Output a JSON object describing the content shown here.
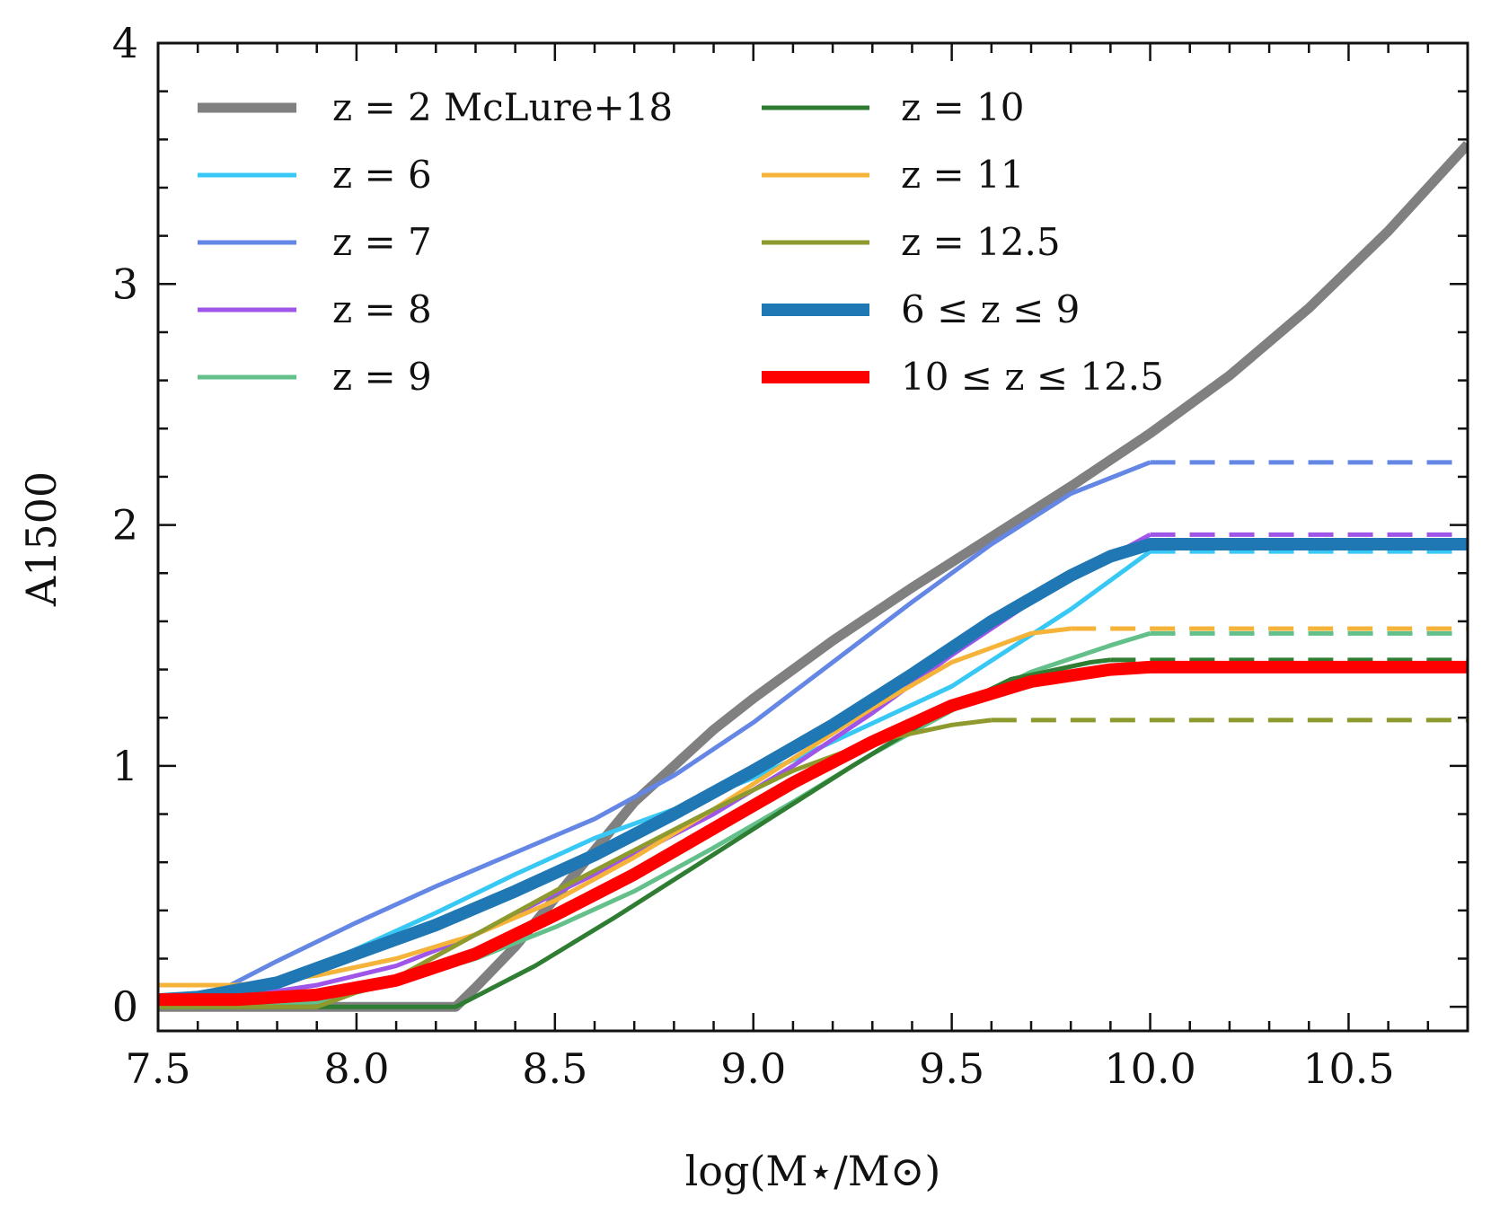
{
  "chart_data": {
    "type": "line",
    "title": "",
    "xlabel": "log(M⋆/M⊙)",
    "ylabel": "A1500",
    "xlim": [
      7.5,
      10.8
    ],
    "ylim": [
      -0.1,
      4.0
    ],
    "xticks": [
      7.5,
      8.0,
      8.5,
      9.0,
      9.5,
      10.0,
      10.5
    ],
    "xtick_labels": [
      "7.5",
      "8.0",
      "8.5",
      "9.0",
      "9.5",
      "10.0",
      "10.5"
    ],
    "yticks": [
      0,
      1,
      2,
      3,
      4
    ],
    "ytick_labels": [
      "0",
      "1",
      "2",
      "3",
      "4"
    ],
    "legend_position": "upper-left",
    "series": [
      {
        "name": "z = 2 McLure+18",
        "color": "#808080",
        "width": 11,
        "x": [
          7.5,
          8.25,
          8.3,
          8.4,
          8.5,
          8.6,
          8.7,
          8.8,
          8.9,
          9.0,
          9.2,
          9.4,
          9.6,
          9.8,
          10.0,
          10.2,
          10.4,
          10.6,
          10.8
        ],
        "y": [
          0.0,
          0.0,
          0.08,
          0.25,
          0.45,
          0.65,
          0.85,
          1.0,
          1.15,
          1.28,
          1.52,
          1.74,
          1.95,
          2.16,
          2.38,
          2.62,
          2.9,
          3.22,
          3.58
        ]
      },
      {
        "name": "z = 6",
        "color": "#37c8f5",
        "width": 5,
        "x": [
          7.5,
          7.6,
          7.8,
          8.0,
          8.2,
          8.4,
          8.6,
          8.8,
          9.0,
          9.2,
          9.5,
          9.8,
          10.0
        ],
        "y": [
          0.0,
          0.0,
          0.1,
          0.24,
          0.39,
          0.55,
          0.7,
          0.82,
          0.95,
          1.1,
          1.33,
          1.65,
          1.89
        ]
      },
      {
        "name": "z = 7",
        "color": "#6486e4",
        "width": 5,
        "x": [
          7.5,
          7.6,
          7.8,
          8.0,
          8.2,
          8.4,
          8.6,
          8.8,
          9.0,
          9.2,
          9.4,
          9.6,
          9.8,
          10.0
        ],
        "y": [
          0.0,
          0.02,
          0.19,
          0.35,
          0.5,
          0.64,
          0.78,
          0.96,
          1.18,
          1.43,
          1.68,
          1.92,
          2.13,
          2.26
        ]
      },
      {
        "name": "z = 8",
        "color": "#9e55e8",
        "width": 5,
        "x": [
          7.5,
          7.7,
          7.9,
          8.1,
          8.3,
          8.5,
          8.7,
          8.9,
          9.1,
          9.3,
          9.5,
          9.7,
          9.9,
          10.0
        ],
        "y": [
          0.02,
          0.04,
          0.09,
          0.17,
          0.3,
          0.47,
          0.63,
          0.8,
          1.0,
          1.22,
          1.46,
          1.68,
          1.87,
          1.96
        ]
      },
      {
        "name": "z = 9",
        "color": "#63c08a",
        "width": 5,
        "x": [
          7.5,
          7.7,
          7.9,
          8.1,
          8.3,
          8.5,
          8.7,
          8.9,
          9.1,
          9.3,
          9.5,
          9.7,
          9.9,
          10.0
        ],
        "y": [
          0.0,
          0.0,
          0.02,
          0.1,
          0.2,
          0.33,
          0.48,
          0.66,
          0.85,
          1.05,
          1.23,
          1.39,
          1.5,
          1.55
        ]
      },
      {
        "name": "z = 10",
        "color": "#2e7d32",
        "width": 5,
        "x": [
          7.5,
          8.25,
          8.45,
          8.65,
          8.85,
          9.05,
          9.25,
          9.45,
          9.65,
          9.85,
          9.9
        ],
        "y": [
          0.0,
          0.0,
          0.17,
          0.37,
          0.58,
          0.79,
          1.0,
          1.2,
          1.36,
          1.43,
          1.44
        ]
      },
      {
        "name": "z = 11",
        "color": "#f5b33a",
        "width": 5,
        "x": [
          7.5,
          7.7,
          7.9,
          8.1,
          8.3,
          8.5,
          8.7,
          8.9,
          9.1,
          9.3,
          9.5,
          9.7,
          9.8
        ],
        "y": [
          0.09,
          0.09,
          0.13,
          0.2,
          0.3,
          0.44,
          0.62,
          0.82,
          1.03,
          1.24,
          1.43,
          1.55,
          1.57
        ]
      },
      {
        "name": "z = 12.5",
        "color": "#8e9a2e",
        "width": 5,
        "x": [
          7.5,
          7.9,
          8.1,
          8.3,
          8.5,
          8.7,
          8.9,
          9.1,
          9.3,
          9.5,
          9.6
        ],
        "y": [
          0.0,
          0.0,
          0.12,
          0.3,
          0.48,
          0.65,
          0.82,
          0.98,
          1.1,
          1.17,
          1.19
        ]
      },
      {
        "name": "6 ≤ z ≤ 9",
        "color": "#1f77b4",
        "width": 14,
        "x": [
          7.5,
          7.6,
          7.8,
          8.0,
          8.2,
          8.4,
          8.6,
          8.8,
          9.0,
          9.2,
          9.4,
          9.6,
          9.8,
          9.9,
          10.0,
          10.8
        ],
        "y": [
          0.03,
          0.04,
          0.1,
          0.22,
          0.34,
          0.48,
          0.63,
          0.8,
          0.98,
          1.17,
          1.38,
          1.6,
          1.79,
          1.87,
          1.92,
          1.92
        ]
      },
      {
        "name": "10 ≤ z ≤ 12.5",
        "color": "#ff0000",
        "width": 14,
        "x": [
          7.5,
          7.7,
          7.9,
          8.1,
          8.3,
          8.5,
          8.7,
          8.9,
          9.1,
          9.3,
          9.5,
          9.7,
          9.9,
          10.0,
          10.8
        ],
        "y": [
          0.03,
          0.03,
          0.05,
          0.11,
          0.22,
          0.38,
          0.55,
          0.74,
          0.93,
          1.1,
          1.25,
          1.35,
          1.4,
          1.41,
          1.41
        ]
      }
    ],
    "dashed_extensions": [
      {
        "name": "z = 7",
        "color": "#6486e4",
        "x": [
          10.0,
          10.8
        ],
        "y": [
          2.26,
          2.26
        ]
      },
      {
        "name": "z = 8",
        "color": "#9e55e8",
        "x": [
          10.0,
          10.8
        ],
        "y": [
          1.96,
          1.96
        ]
      },
      {
        "name": "z = 6",
        "color": "#37c8f5",
        "x": [
          10.0,
          10.8
        ],
        "y": [
          1.89,
          1.89
        ]
      },
      {
        "name": "z = 11",
        "color": "#f5b33a",
        "x": [
          9.8,
          10.8
        ],
        "y": [
          1.57,
          1.57
        ]
      },
      {
        "name": "z = 9",
        "color": "#63c08a",
        "x": [
          10.0,
          10.8
        ],
        "y": [
          1.55,
          1.55
        ]
      },
      {
        "name": "z = 10",
        "color": "#2e7d32",
        "x": [
          9.9,
          10.8
        ],
        "y": [
          1.44,
          1.44
        ]
      },
      {
        "name": "z = 12.5",
        "color": "#8e9a2e",
        "x": [
          9.6,
          10.8
        ],
        "y": [
          1.19,
          1.19
        ]
      }
    ]
  }
}
